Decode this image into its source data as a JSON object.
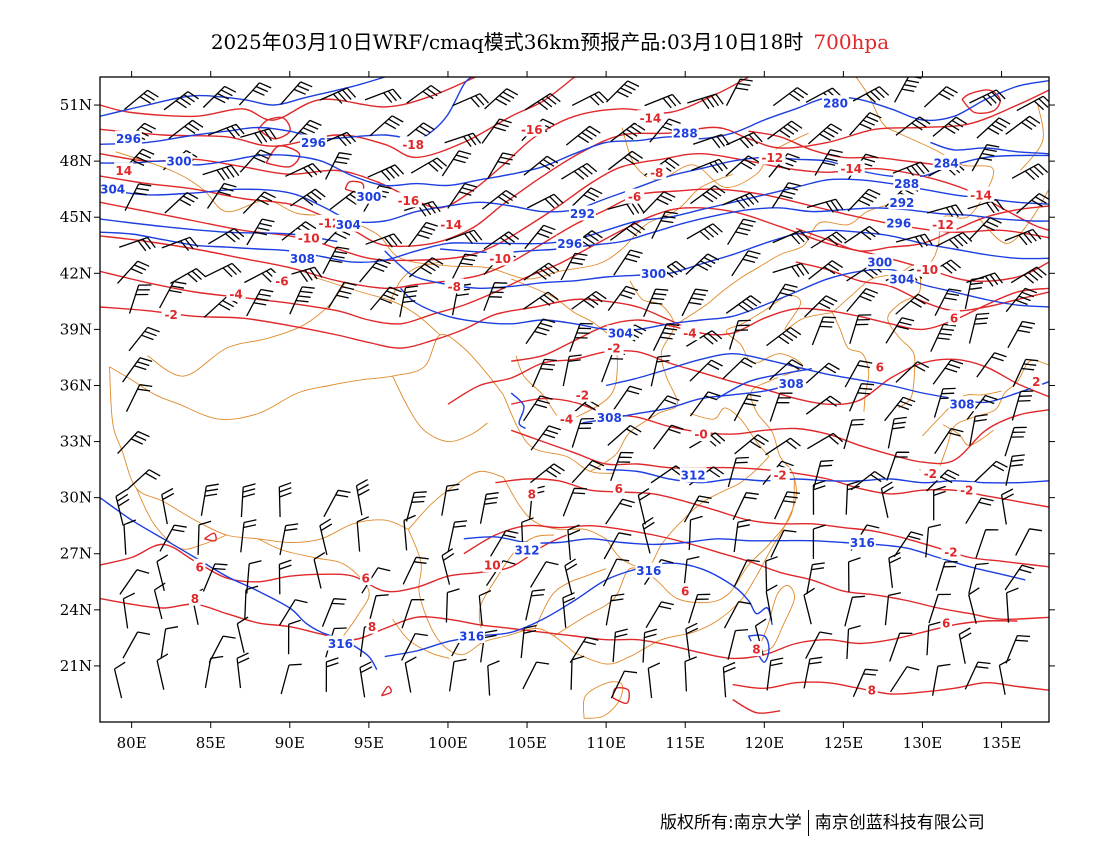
{
  "header": {
    "title": "2025年03月10日WRF/cmaq模式36km预报产品:03月10日18时",
    "level": "700hpa"
  },
  "map": {
    "lat_ticks": [
      "51N",
      "48N",
      "45N",
      "42N",
      "39N",
      "36N",
      "33N",
      "30N",
      "27N",
      "24N",
      "21N"
    ],
    "lon_ticks": [
      "80E",
      "85E",
      "90E",
      "95E",
      "100E",
      "105E",
      "110E",
      "115E",
      "120E",
      "125E",
      "130E",
      "135E"
    ],
    "lon_range": [
      78,
      138
    ],
    "lat_range": [
      18,
      52.5
    ],
    "colors": {
      "temperature_contours": "#e0282a",
      "height_contours": "#1d3fe0",
      "boundaries": "#e08a2a",
      "wind_barbs": "#000000"
    },
    "temperature_labels": [
      {
        "text": "14",
        "lon": 79.5,
        "lat": 47.5
      },
      {
        "text": "-18",
        "lon": 97.8,
        "lat": 48.9
      },
      {
        "text": "-16",
        "lon": 105.3,
        "lat": 49.7
      },
      {
        "text": "-14",
        "lon": 112.8,
        "lat": 50.3
      },
      {
        "text": "-12",
        "lon": 120.5,
        "lat": 48.2
      },
      {
        "text": "-14",
        "lon": 125.5,
        "lat": 47.6
      },
      {
        "text": "-14",
        "lon": 133.7,
        "lat": 46.2
      },
      {
        "text": "-12",
        "lon": 131.3,
        "lat": 44.6
      },
      {
        "text": "-10",
        "lon": 130.3,
        "lat": 42.2
      },
      {
        "text": "-16",
        "lon": 97.5,
        "lat": 45.9
      },
      {
        "text": "-14",
        "lon": 100.2,
        "lat": 44.6
      },
      {
        "text": "-12",
        "lon": 92.5,
        "lat": 44.7
      },
      {
        "text": "-10",
        "lon": 91.2,
        "lat": 43.9
      },
      {
        "text": "-10",
        "lon": 103.3,
        "lat": 42.8
      },
      {
        "text": "-8",
        "lon": 113.2,
        "lat": 47.4
      },
      {
        "text": "-6",
        "lon": 111.8,
        "lat": 46.1
      },
      {
        "text": "-8",
        "lon": 100.4,
        "lat": 41.3
      },
      {
        "text": "-6",
        "lon": 89.5,
        "lat": 41.6
      },
      {
        "text": "-4",
        "lon": 86.6,
        "lat": 40.9
      },
      {
        "text": "-2",
        "lon": 82.5,
        "lat": 39.8
      },
      {
        "text": "-4",
        "lon": 115.3,
        "lat": 38.8
      },
      {
        "text": "-2",
        "lon": 110.5,
        "lat": 38.0
      },
      {
        "text": "-2",
        "lon": 108.5,
        "lat": 35.5
      },
      {
        "text": "-4",
        "lon": 107.5,
        "lat": 34.2
      },
      {
        "text": "-0",
        "lon": 116.0,
        "lat": 33.4
      },
      {
        "text": "-2",
        "lon": 121.0,
        "lat": 31.2
      },
      {
        "text": "-2",
        "lon": 130.5,
        "lat": 31.3
      },
      {
        "text": "-2",
        "lon": 132.8,
        "lat": 30.4
      },
      {
        "text": "6",
        "lon": 110.8,
        "lat": 30.5
      },
      {
        "text": "8",
        "lon": 105.3,
        "lat": 30.2
      },
      {
        "text": "10",
        "lon": 102.8,
        "lat": 26.4
      },
      {
        "text": "6",
        "lon": 84.3,
        "lat": 26.3
      },
      {
        "text": "8",
        "lon": 84.0,
        "lat": 24.6
      },
      {
        "text": "6",
        "lon": 94.8,
        "lat": 25.7
      },
      {
        "text": "8",
        "lon": 95.2,
        "lat": 23.1
      },
      {
        "text": "6",
        "lon": 115.0,
        "lat": 25.0
      },
      {
        "text": "-2",
        "lon": 131.8,
        "lat": 27.1
      },
      {
        "text": "6",
        "lon": 131.5,
        "lat": 23.3
      },
      {
        "text": "8",
        "lon": 119.5,
        "lat": 21.9
      },
      {
        "text": "8",
        "lon": 126.8,
        "lat": 19.7
      },
      {
        "text": "6",
        "lon": 132.0,
        "lat": 39.6
      },
      {
        "text": "6",
        "lon": 127.3,
        "lat": 37.0
      },
      {
        "text": "2",
        "lon": 137.2,
        "lat": 36.2
      }
    ],
    "height_labels": [
      {
        "text": "296",
        "lon": 79.8,
        "lat": 49.2
      },
      {
        "text": "296",
        "lon": 91.5,
        "lat": 49.0
      },
      {
        "text": "300",
        "lon": 83.0,
        "lat": 48.0
      },
      {
        "text": "304",
        "lon": 78.8,
        "lat": 46.5
      },
      {
        "text": "300",
        "lon": 95.0,
        "lat": 46.1
      },
      {
        "text": "304",
        "lon": 93.7,
        "lat": 44.6
      },
      {
        "text": "308",
        "lon": 90.8,
        "lat": 42.8
      },
      {
        "text": "292",
        "lon": 108.5,
        "lat": 45.2
      },
      {
        "text": "296",
        "lon": 107.7,
        "lat": 43.6
      },
      {
        "text": "288",
        "lon": 115.0,
        "lat": 49.5
      },
      {
        "text": "280",
        "lon": 124.5,
        "lat": 51.1
      },
      {
        "text": "284",
        "lon": 131.5,
        "lat": 47.9
      },
      {
        "text": "288",
        "lon": 129.0,
        "lat": 46.8
      },
      {
        "text": "292",
        "lon": 128.7,
        "lat": 45.8
      },
      {
        "text": "296",
        "lon": 128.5,
        "lat": 44.7
      },
      {
        "text": "300",
        "lon": 113.0,
        "lat": 42.0
      },
      {
        "text": "300",
        "lon": 127.3,
        "lat": 42.6
      },
      {
        "text": "304",
        "lon": 128.7,
        "lat": 41.7
      },
      {
        "text": "304",
        "lon": 110.9,
        "lat": 38.8
      },
      {
        "text": "308",
        "lon": 121.7,
        "lat": 36.1
      },
      {
        "text": "308",
        "lon": 132.5,
        "lat": 35.0
      },
      {
        "text": "308",
        "lon": 110.2,
        "lat": 34.3
      },
      {
        "text": "312",
        "lon": 115.5,
        "lat": 31.2
      },
      {
        "text": "312",
        "lon": 105.0,
        "lat": 27.2
      },
      {
        "text": "316",
        "lon": 126.2,
        "lat": 27.6
      },
      {
        "text": "316",
        "lon": 112.7,
        "lat": 26.1
      },
      {
        "text": "316",
        "lon": 93.2,
        "lat": 22.2
      },
      {
        "text": "316",
        "lon": 101.5,
        "lat": 22.6
      }
    ]
  },
  "footer": {
    "copyright": "版权所有:南京大学",
    "company": "南京创蓝科技有限公司"
  }
}
